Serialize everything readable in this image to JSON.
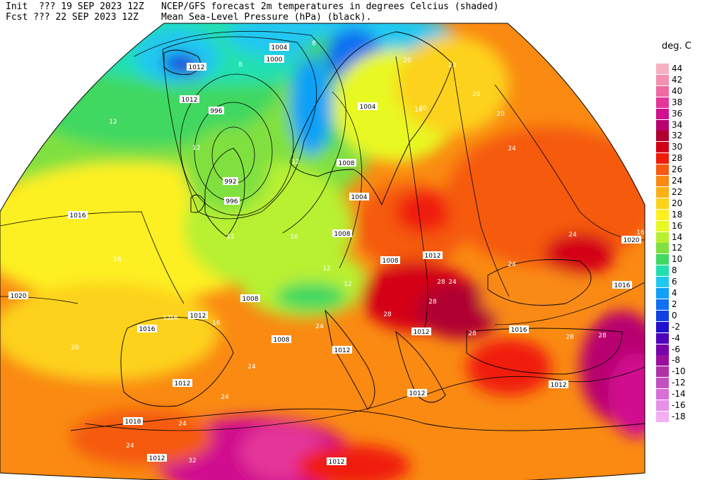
{
  "header": {
    "init_prefix": "Init  ???",
    "init_time": "19 SEP 2023 12Z",
    "fcst_prefix": "Fcst ???",
    "fcst_time": "22 SEP 2023 12Z",
    "product": "NCEP/GFS forecast 2m temperatures in degrees Celcius (shaded)",
    "overlay": "Mean Sea-Level Pressure (hPa) (black)."
  },
  "legend": {
    "title": "deg. C",
    "entries": [
      {
        "label": "44",
        "color": "#f7b0c0"
      },
      {
        "label": "42",
        "color": "#f590b0"
      },
      {
        "label": "40",
        "color": "#ef6aa0"
      },
      {
        "label": "38",
        "color": "#e4369a"
      },
      {
        "label": "36",
        "color": "#d0108e"
      },
      {
        "label": "34",
        "color": "#b80070"
      },
      {
        "label": "32",
        "color": "#b00030"
      },
      {
        "label": "30",
        "color": "#d40018"
      },
      {
        "label": "28",
        "color": "#f01c08"
      },
      {
        "label": "26",
        "color": "#f55a10"
      },
      {
        "label": "24",
        "color": "#fa8a12"
      },
      {
        "label": "22",
        "color": "#fcb016"
      },
      {
        "label": "20",
        "color": "#fdd21a"
      },
      {
        "label": "18",
        "color": "#fdf020"
      },
      {
        "label": "16",
        "color": "#e8f820"
      },
      {
        "label": "14",
        "color": "#b8f030"
      },
      {
        "label": "12",
        "color": "#80e040"
      },
      {
        "label": "10",
        "color": "#40d860"
      },
      {
        "label": "8",
        "color": "#20e0b0"
      },
      {
        "label": "6",
        "color": "#20c8f0"
      },
      {
        "label": "4",
        "color": "#10a0f8"
      },
      {
        "label": "2",
        "color": "#1070f0"
      },
      {
        "label": "0",
        "color": "#1040e0"
      },
      {
        "label": "-2",
        "color": "#2010d0"
      },
      {
        "label": "-4",
        "color": "#5000b8"
      },
      {
        "label": "-6",
        "color": "#7800a8"
      },
      {
        "label": "-8",
        "color": "#9a109a"
      },
      {
        "label": "-10",
        "color": "#b030a8"
      },
      {
        "label": "-12",
        "color": "#c450c0"
      },
      {
        "label": "-14",
        "color": "#d870d8"
      },
      {
        "label": "-16",
        "color": "#e890e8"
      },
      {
        "label": "-18",
        "color": "#f2b0f2"
      }
    ]
  },
  "isobar_labels": [
    {
      "text": "1004",
      "value": 1004
    },
    {
      "text": "1000",
      "value": 1000
    },
    {
      "text": "1012",
      "value": 1012
    },
    {
      "text": "996",
      "value": 996
    },
    {
      "text": "992",
      "value": 992
    },
    {
      "text": "996",
      "value": 996
    },
    {
      "text": "1012",
      "value": 1012
    },
    {
      "text": "1016",
      "value": 1016
    },
    {
      "text": "1020",
      "value": 1020
    },
    {
      "text": "1004",
      "value": 1004
    },
    {
      "text": "1008",
      "value": 1008
    },
    {
      "text": "1004",
      "value": 1004
    },
    {
      "text": "1008",
      "value": 1008
    },
    {
      "text": "1008",
      "value": 1008
    },
    {
      "text": "1012",
      "value": 1012
    },
    {
      "text": "1008",
      "value": 1008
    },
    {
      "text": "1012",
      "value": 1012
    },
    {
      "text": "1016",
      "value": 1016
    },
    {
      "text": "1012",
      "value": 1012
    },
    {
      "text": "1008",
      "value": 1008
    },
    {
      "text": "1012",
      "value": 1012
    },
    {
      "text": "1016",
      "value": 1016
    },
    {
      "text": "1012",
      "value": 1012
    },
    {
      "text": "1018",
      "value": 1018
    },
    {
      "text": "1012",
      "value": 1012
    },
    {
      "text": "1012",
      "value": 1012
    },
    {
      "text": "1012",
      "value": 1012
    },
    {
      "text": "1012",
      "value": 1012
    },
    {
      "text": "1020",
      "value": 1020
    },
    {
      "text": "1016",
      "value": 1016
    }
  ],
  "temp_labels": [
    "8",
    "8",
    "12",
    "12",
    "12",
    "12",
    "12",
    "16",
    "16",
    "16",
    "16",
    "20",
    "20",
    "24",
    "20",
    "20",
    "24",
    "28",
    "28",
    "24",
    "24",
    "24",
    "28",
    "24",
    "24",
    "32",
    "28",
    "28",
    "24",
    "24",
    "28",
    "20",
    "20",
    "12",
    "12",
    "16",
    "16"
  ]
}
